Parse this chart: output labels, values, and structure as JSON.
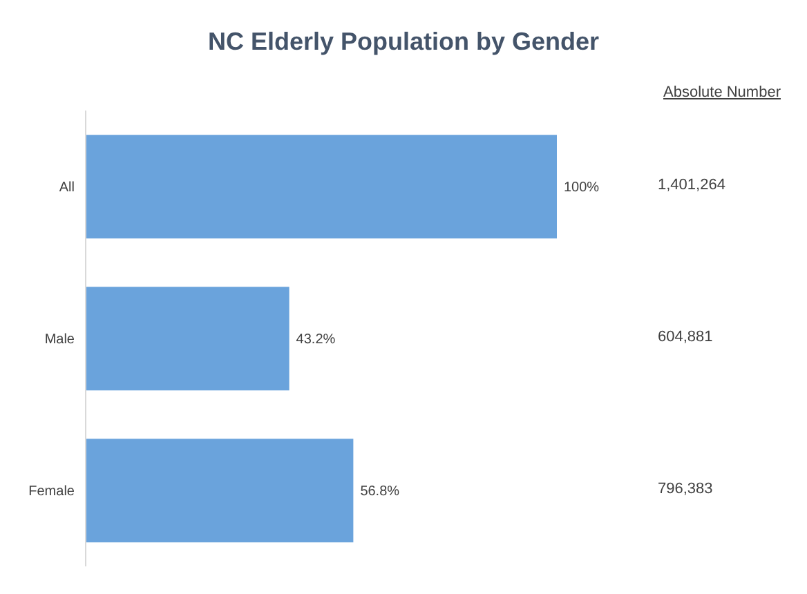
{
  "chart_data": {
    "type": "bar",
    "orientation": "horizontal",
    "title": "NC Elderly Population by Gender",
    "categories": [
      "All",
      "Male",
      "Female"
    ],
    "values": [
      100,
      43.2,
      56.8
    ],
    "value_labels": [
      "100%",
      "43.2%",
      "56.8%"
    ],
    "color": "#6aa3dc",
    "tick_labels": "y",
    "annotations": [
      "Absolute Number",
      "1,401,264",
      "604,881",
      "796,383"
    ]
  }
}
